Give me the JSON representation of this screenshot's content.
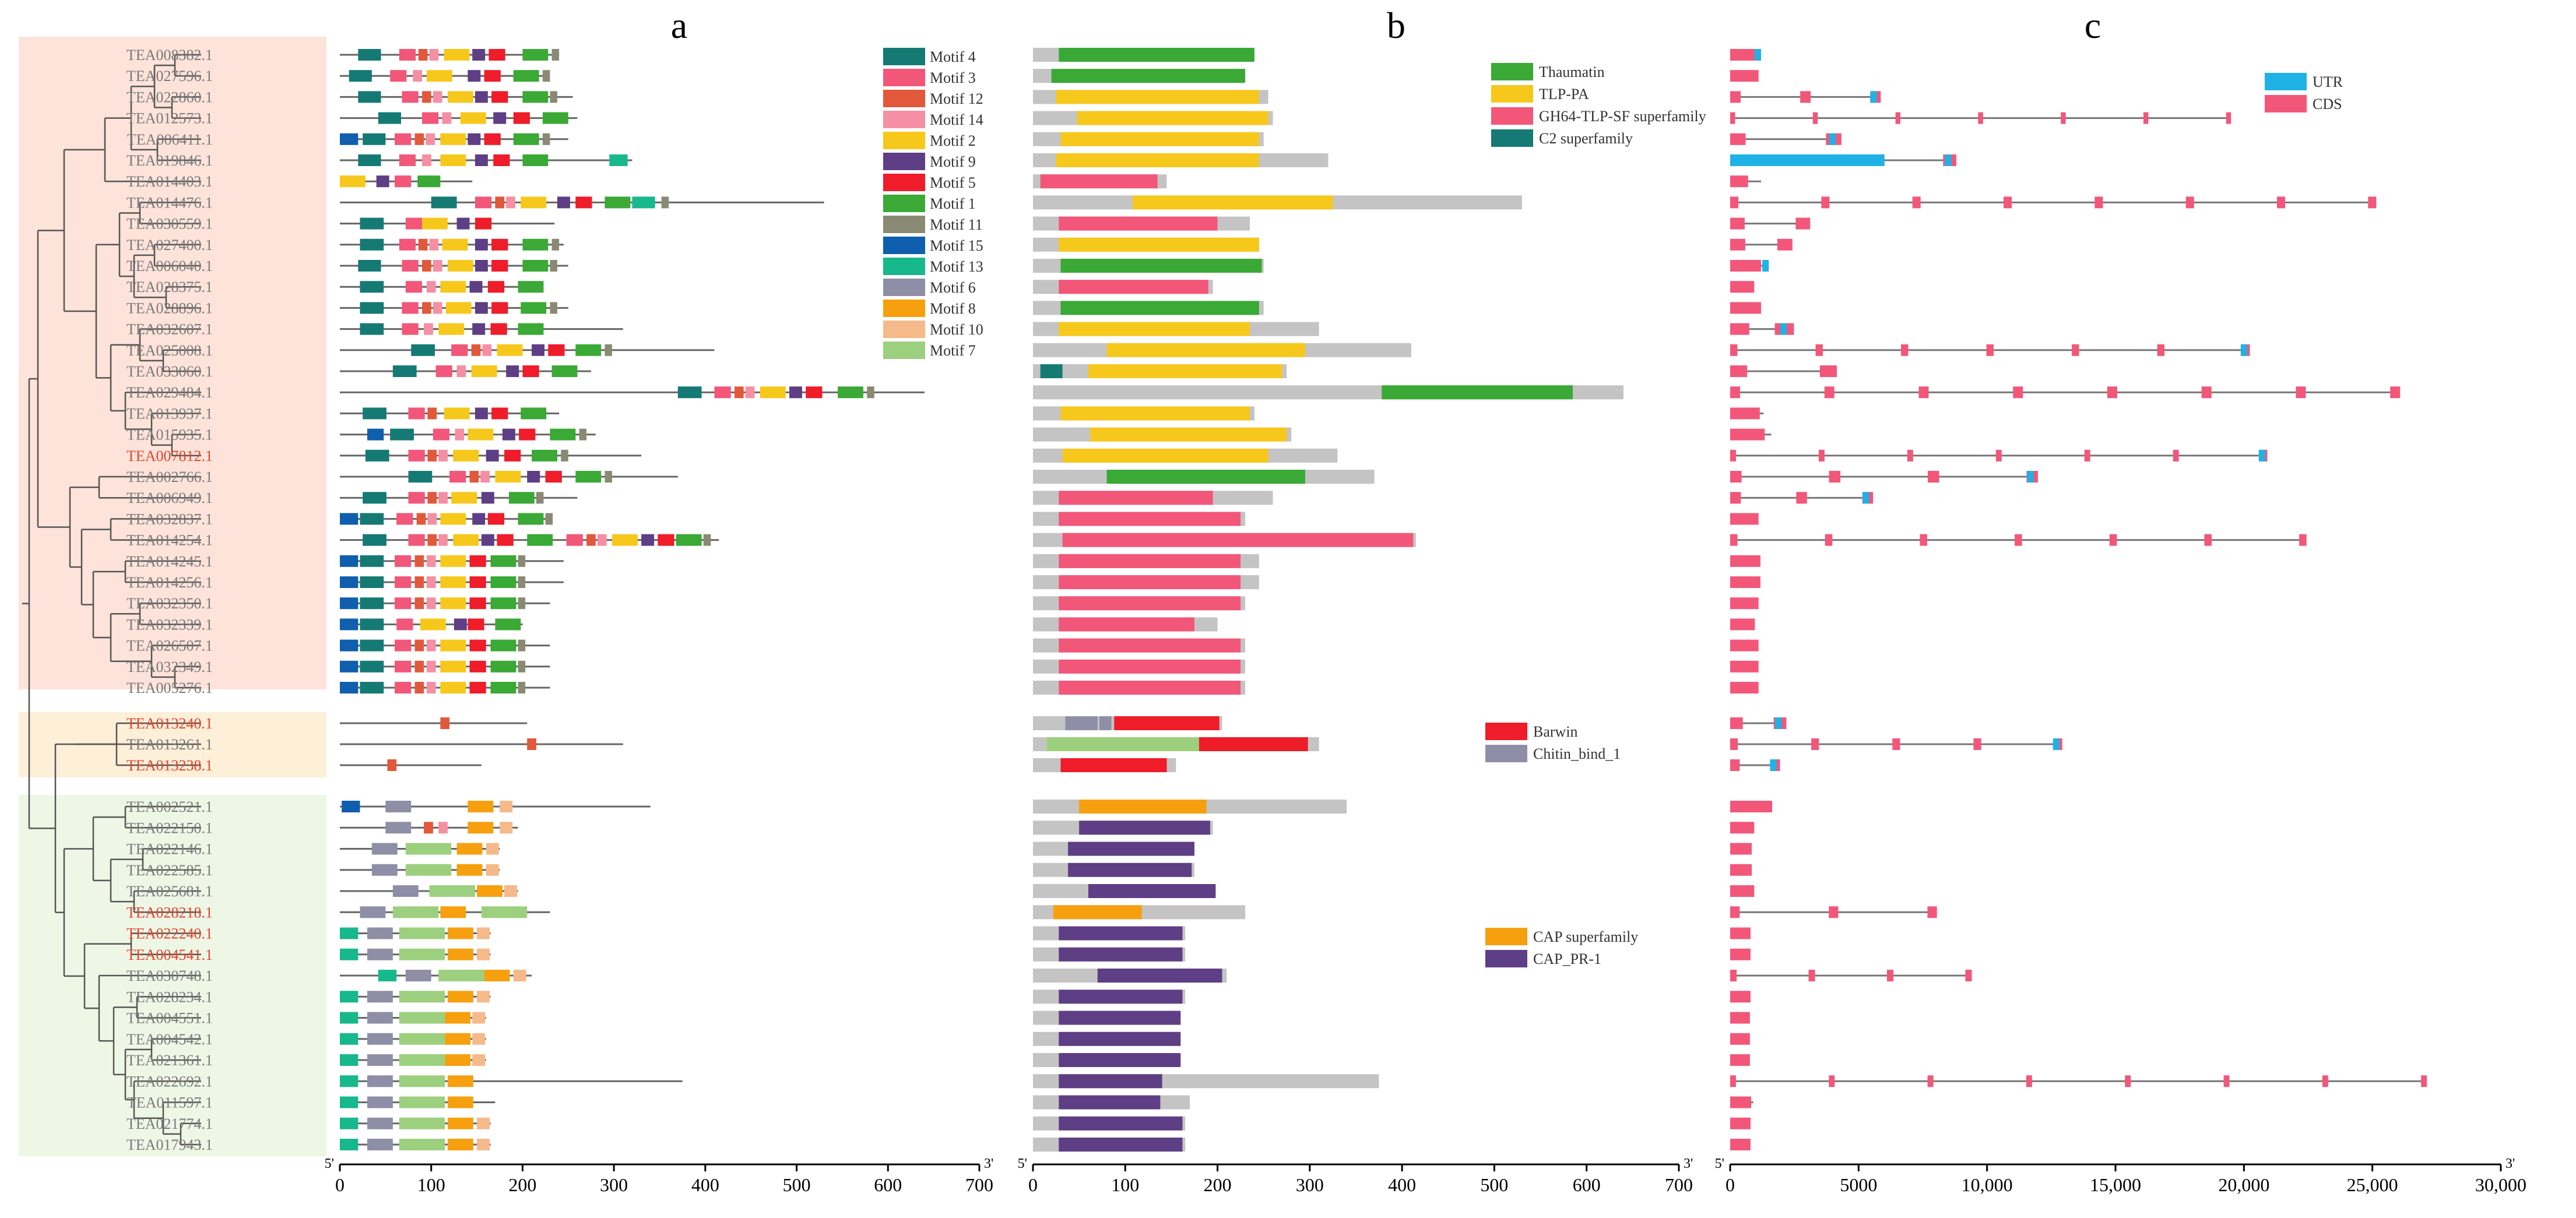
{
  "panel_labels": [
    "a",
    "b",
    "c"
  ],
  "genes": [
    {
      "name": "TEA008382.1",
      "color": "#7a7a7a"
    },
    {
      "name": "TEA027596.1",
      "color": "#7a7a7a"
    },
    {
      "name": "TEA022860.1",
      "color": "#7a7a7a"
    },
    {
      "name": "TEA012573.1",
      "color": "#7a7a7a"
    },
    {
      "name": "TEA006411.1",
      "color": "#7a7a7a"
    },
    {
      "name": "TEA019846.1",
      "color": "#7a7a7a"
    },
    {
      "name": "TEA014403.1",
      "color": "#7a7a7a"
    },
    {
      "name": "TEA014476.1",
      "color": "#7a7a7a"
    },
    {
      "name": "TEA030559.1",
      "color": "#7a7a7a"
    },
    {
      "name": "TEA027400.1",
      "color": "#7a7a7a"
    },
    {
      "name": "TEA006040.1",
      "color": "#7a7a7a"
    },
    {
      "name": "TEA028375.1",
      "color": "#7a7a7a"
    },
    {
      "name": "TEA028896.1",
      "color": "#7a7a7a"
    },
    {
      "name": "TEA032607.1",
      "color": "#7a7a7a"
    },
    {
      "name": "TEA025008.1",
      "color": "#7a7a7a"
    },
    {
      "name": "TEA033060.1",
      "color": "#7a7a7a"
    },
    {
      "name": "TEA029484.1",
      "color": "#7a7a7a"
    },
    {
      "name": "TEA013937.1",
      "color": "#7a7a7a"
    },
    {
      "name": "TEA015935.1",
      "color": "#7a7a7a"
    },
    {
      "name": "TEA007812.1",
      "color": "#e8432d"
    },
    {
      "name": "TEA002766.1",
      "color": "#7a7a7a"
    },
    {
      "name": "TEA006949.1",
      "color": "#7a7a7a"
    },
    {
      "name": "TEA032837.1",
      "color": "#7a7a7a"
    },
    {
      "name": "TEA014254.1",
      "color": "#7a7a7a"
    },
    {
      "name": "TEA014245.1",
      "color": "#7a7a7a"
    },
    {
      "name": "TEA014256.1",
      "color": "#7a7a7a"
    },
    {
      "name": "TEA032350.1",
      "color": "#7a7a7a"
    },
    {
      "name": "TEA032339.1",
      "color": "#7a7a7a"
    },
    {
      "name": "TEA026507.1",
      "color": "#7a7a7a"
    },
    {
      "name": "TEA032349.1",
      "color": "#7a7a7a"
    },
    {
      "name": "TEA005276.1",
      "color": "#7a7a7a"
    },
    {
      "name": "TEA013240.1",
      "color": "#e8432d"
    },
    {
      "name": "TEA013261.1",
      "color": "#7a7a7a"
    },
    {
      "name": "TEA013238.1",
      "color": "#e8432d"
    },
    {
      "name": "TEA002521.1",
      "color": "#7a7a7a"
    },
    {
      "name": "TEA022150.1",
      "color": "#7a7a7a"
    },
    {
      "name": "TEA022146.1",
      "color": "#7a7a7a"
    },
    {
      "name": "TEA022585.1",
      "color": "#7a7a7a"
    },
    {
      "name": "TEA025681.1",
      "color": "#7a7a7a"
    },
    {
      "name": "TEA028218.1",
      "color": "#e8432d"
    },
    {
      "name": "TEA022240.1",
      "color": "#e8432d"
    },
    {
      "name": "TEA004541.1",
      "color": "#e8432d"
    },
    {
      "name": "TEA030748.1",
      "color": "#7a7a7a"
    },
    {
      "name": "TEA028234.1",
      "color": "#7a7a7a"
    },
    {
      "name": "TEA004551.1",
      "color": "#7a7a7a"
    },
    {
      "name": "TEA004542.1",
      "color": "#7a7a7a"
    },
    {
      "name": "TEA021361.1",
      "color": "#7a7a7a"
    },
    {
      "name": "TEA022692.1",
      "color": "#7a7a7a"
    },
    {
      "name": "TEA011597.1",
      "color": "#7a7a7a"
    },
    {
      "name": "TEA021774.1",
      "color": "#7a7a7a"
    },
    {
      "name": "TEA017943.1",
      "color": "#7a7a7a"
    }
  ],
  "motif_legend": [
    {
      "label": "Motif 4",
      "color": "#157a74"
    },
    {
      "label": "Motif 3",
      "color": "#f2577a"
    },
    {
      "label": "Motif 12",
      "color": "#e2583a"
    },
    {
      "label": "Motif 14",
      "color": "#f58fa3"
    },
    {
      "label": "Motif 2",
      "color": "#f7c81c"
    },
    {
      "label": "Motif 9",
      "color": "#5e3e84"
    },
    {
      "label": "Motif 5",
      "color": "#ef1c2a"
    },
    {
      "label": "Motif 1",
      "color": "#3aa935"
    },
    {
      "label": "Motif 11",
      "color": "#8a8a74"
    },
    {
      "label": "Motif 15",
      "color": "#0f5fae"
    },
    {
      "label": "Motif 13",
      "color": "#17b88c"
    },
    {
      "label": "Motif 6",
      "color": "#8e8fa6"
    },
    {
      "label": "Motif 8",
      "color": "#f6a00f"
    },
    {
      "label": "Motif 10",
      "color": "#f6b98a"
    },
    {
      "label": "Motif 7",
      "color": "#9dd07e"
    }
  ],
  "domain_legend_1": [
    {
      "label": "Thaumatin",
      "color": "#3aa935"
    },
    {
      "label": "TLP-PA",
      "color": "#f7c81c"
    },
    {
      "label": "GH64-TLP-SF superfamily",
      "color": "#f2577a"
    },
    {
      "label": "C2 superfamily",
      "color": "#157a74"
    }
  ],
  "domain_legend_2": [
    {
      "label": "Barwin",
      "color": "#ef1c2a"
    },
    {
      "label": "Chitin_bind_1",
      "color": "#8e8fa6"
    }
  ],
  "domain_legend_3": [
    {
      "label": "CAP superfamily",
      "color": "#f6a00f"
    },
    {
      "label": "CAP_PR-1",
      "color": "#5e3e84"
    }
  ],
  "gene_legend": [
    {
      "label": "UTR",
      "color": "#1fb2e6"
    },
    {
      "label": "CDS",
      "color": "#f2577a"
    }
  ],
  "axis_a": {
    "end5": "5'",
    "end3": "3'",
    "ticks": [
      "0",
      "100",
      "200",
      "300",
      "400",
      "500",
      "600",
      "700"
    ]
  },
  "axis_b": {
    "end5": "5'",
    "end3": "3'",
    "ticks": [
      "0",
      "100",
      "200",
      "300",
      "400",
      "500",
      "600",
      "700"
    ]
  },
  "axis_c": {
    "end5": "5'",
    "end3": "3'",
    "ticks": [
      "0",
      "5000",
      "10,000",
      "15,000",
      "20,000",
      "25,000",
      "30,000"
    ]
  },
  "protein_lengths_aa": [
    240,
    230,
    255,
    260,
    250,
    320,
    145,
    530,
    235,
    245,
    250,
    195,
    250,
    310,
    410,
    275,
    640,
    240,
    280,
    330,
    370,
    260,
    230,
    415,
    245,
    245,
    230,
    200,
    230,
    230,
    230,
    205,
    310,
    155,
    340,
    195,
    175,
    175,
    195,
    230,
    165,
    165,
    210,
    165,
    160,
    160,
    160,
    375,
    170,
    165,
    165
  ],
  "gene_lengths_bp": [
    1200,
    800,
    5700,
    19400,
    4100,
    8600,
    1200,
    25000,
    2900,
    2200,
    1500,
    750,
    800,
    2200,
    20100,
    3900,
    25900,
    1300,
    1600,
    20800,
    11800,
    5400,
    750,
    22300,
    850,
    850,
    850,
    750,
    800,
    800,
    800,
    2000,
    12800,
    1800,
    1100,
    600,
    600,
    600,
    600,
    7900,
    550,
    550,
    9300,
    550,
    550,
    550,
    550,
    27000,
    900,
    550,
    550
  ],
  "cds_length_bp": [
    720,
    690,
    765,
    780,
    750,
    960,
    435,
    1590,
    705,
    735,
    750,
    585,
    750,
    930,
    1230,
    825,
    1920,
    720,
    840,
    990,
    1110,
    780,
    690,
    1245,
    735,
    735,
    690,
    600,
    690,
    690,
    690,
    615,
    930,
    465,
    1020,
    585,
    525,
    525,
    585,
    690,
    495,
    495,
    630,
    495,
    480,
    480,
    480,
    1125,
    510,
    495,
    495
  ]
}
